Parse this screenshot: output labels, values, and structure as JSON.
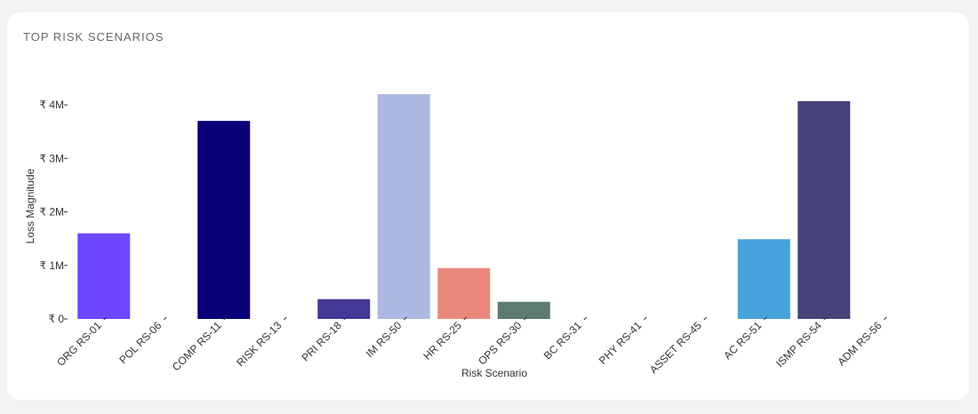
{
  "chart_data": {
    "type": "bar",
    "title": "TOP RISK SCENARIOS",
    "x_label": "Risk Scenario",
    "y_label": "Loss Magnitude",
    "categories": [
      "ORG RS-01",
      "POL RS-06",
      "COMP RS-11",
      "RISK RS-13",
      "PRI RS-18",
      "IM RS-50",
      "HR RS-25",
      "OPS RS-30",
      "BC RS-31",
      "PHY RS-41",
      "ASSET RS-45",
      "AC RS-51",
      "ISMP RS-54",
      "ADM RS-56"
    ],
    "values": [
      1600000,
      0,
      3700000,
      0,
      370000,
      4200000,
      950000,
      320000,
      0,
      0,
      0,
      1490000,
      4070000,
      0
    ],
    "colors": [
      "#6c47ff",
      null,
      "#0a0078",
      null,
      "#433797",
      "#adb9e3",
      "#e8887c",
      "#5e7b70",
      null,
      null,
      null,
      "#47a3dc",
      "#47437a",
      null
    ],
    "ylim": [
      0,
      4200000
    ],
    "yticks": [
      {
        "value": 0,
        "label": "₹ 0"
      },
      {
        "value": 1000000,
        "label": "₹ 1M"
      },
      {
        "value": 2000000,
        "label": "₹ 2M"
      },
      {
        "value": 3000000,
        "label": "₹ 3M"
      },
      {
        "value": 4000000,
        "label": "₹ 4M"
      }
    ],
    "grid": false
  }
}
